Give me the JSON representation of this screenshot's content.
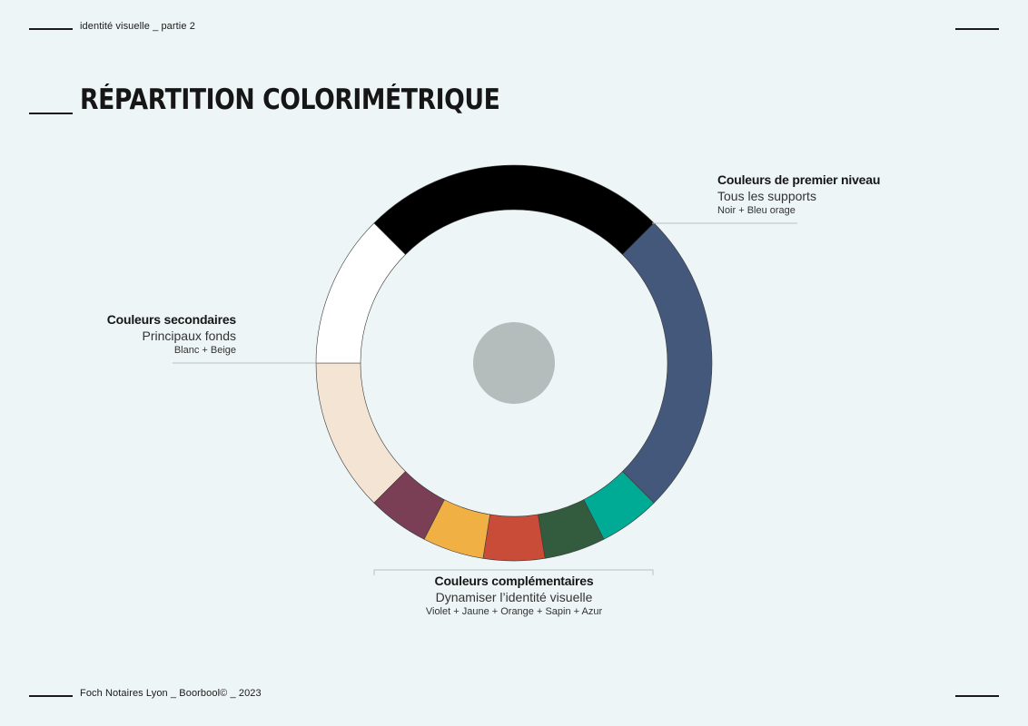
{
  "header": {
    "section_label": "identité visuelle _ partie 2"
  },
  "page_title": "RÉPARTITION COLORIMÉTRIQUE",
  "footer": {
    "credit": "Foch Notaires Lyon _ Boorbool© _ 2023"
  },
  "colors": {
    "background": "#edf5f6",
    "center": "#b5bcbc",
    "segments": [
      "#000000",
      "#44587c",
      "#00ab96",
      "#335c3e",
      "#c94c38",
      "#f0b044",
      "#7a3e55",
      "#f3e4d4",
      "#ffffff"
    ]
  },
  "chart_data": {
    "type": "pie",
    "style": "donut",
    "segments": [
      {
        "color": "Noir",
        "hex": "#000000",
        "value": 25.0
      },
      {
        "color": "Bleu orage",
        "hex": "#44587c",
        "value": 25.0
      },
      {
        "color": "Azur",
        "hex": "#00ab96",
        "value": 5.0
      },
      {
        "color": "Sapin",
        "hex": "#335c3e",
        "value": 5.0
      },
      {
        "color": "Orange",
        "hex": "#c94c38",
        "value": 5.0
      },
      {
        "color": "Jaune",
        "hex": "#f0b044",
        "value": 5.0
      },
      {
        "color": "Violet",
        "hex": "#7a3e55",
        "value": 5.0
      },
      {
        "color": "Beige",
        "hex": "#f3e4d4",
        "value": 12.5
      },
      {
        "color": "Blanc",
        "hex": "#ffffff",
        "value": 12.5
      }
    ],
    "groups": [
      {
        "id": "premier",
        "heading": "Couleurs de premier niveau",
        "usage": "Tous les supports",
        "colors_text": "Noir + Bleu orage"
      },
      {
        "id": "secondaires",
        "heading": "Couleurs secondaires",
        "usage": "Principaux fonds",
        "colors_text": "Blanc + Beige"
      },
      {
        "id": "complementaires",
        "heading": "Couleurs complémentaires",
        "usage": "Dynamiser l’identité visuelle",
        "colors_text": "Violet + Jaune + Orange + Sapin + Azur"
      }
    ]
  }
}
